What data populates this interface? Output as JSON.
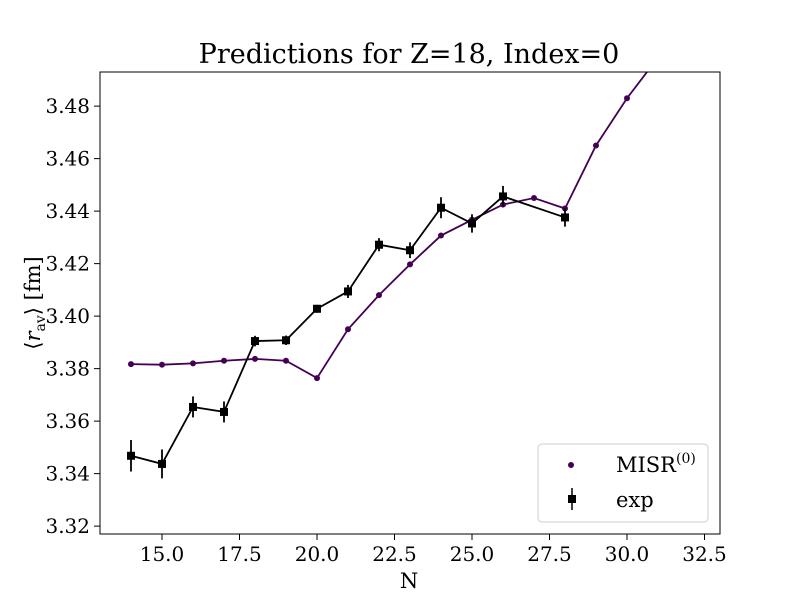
{
  "chart_data": {
    "type": "line",
    "title": "Predictions for Z=18, Index=0",
    "xlabel": "N",
    "ylabel": "⟨r_av⟩ [fm]",
    "ylabel_parts": {
      "open": "⟨",
      "var": "r",
      "sub": "av",
      "close": "⟩",
      "unit": " [fm]"
    },
    "xlim": [
      13.0,
      33.0
    ],
    "ylim": [
      3.317,
      3.493
    ],
    "xticks": [
      "15.0",
      "17.5",
      "20.0",
      "22.5",
      "25.0",
      "27.5",
      "30.0",
      "32.5"
    ],
    "yticks": [
      "3.32",
      "3.34",
      "3.36",
      "3.38",
      "3.40",
      "3.42",
      "3.44",
      "3.46",
      "3.48"
    ],
    "grid": false,
    "legend_position": "lower-right",
    "series": [
      {
        "name": "MISR(0)",
        "name_parts": {
          "base": "MISR",
          "sup": "(0)"
        },
        "color": "#440154",
        "marker": "circle",
        "x": [
          14,
          15,
          16,
          17,
          18,
          19,
          20,
          21,
          22,
          23,
          24,
          25,
          26,
          27,
          28,
          29,
          30,
          31
        ],
        "y": [
          3.3817,
          3.3815,
          3.382,
          3.383,
          3.3837,
          3.383,
          3.3764,
          3.395,
          3.408,
          3.4197,
          3.4307,
          3.4367,
          3.4425,
          3.445,
          3.441,
          3.465,
          3.483,
          3.4985
        ]
      },
      {
        "name": "exp",
        "color": "#000000",
        "marker": "square",
        "x": [
          14,
          15,
          16,
          17,
          18,
          19,
          20,
          21,
          22,
          23,
          24,
          25,
          26,
          28
        ],
        "y": [
          3.3468,
          3.3437,
          3.3654,
          3.3635,
          3.3905,
          3.3908,
          3.4028,
          3.4094,
          3.4272,
          3.4251,
          3.4413,
          3.4353,
          3.4456,
          3.4376
        ],
        "yerr": [
          0.006,
          0.0055,
          0.004,
          0.004,
          0.002,
          0.0018,
          0.0015,
          0.0025,
          0.0025,
          0.003,
          0.004,
          0.0035,
          0.004,
          0.0035
        ]
      }
    ]
  }
}
